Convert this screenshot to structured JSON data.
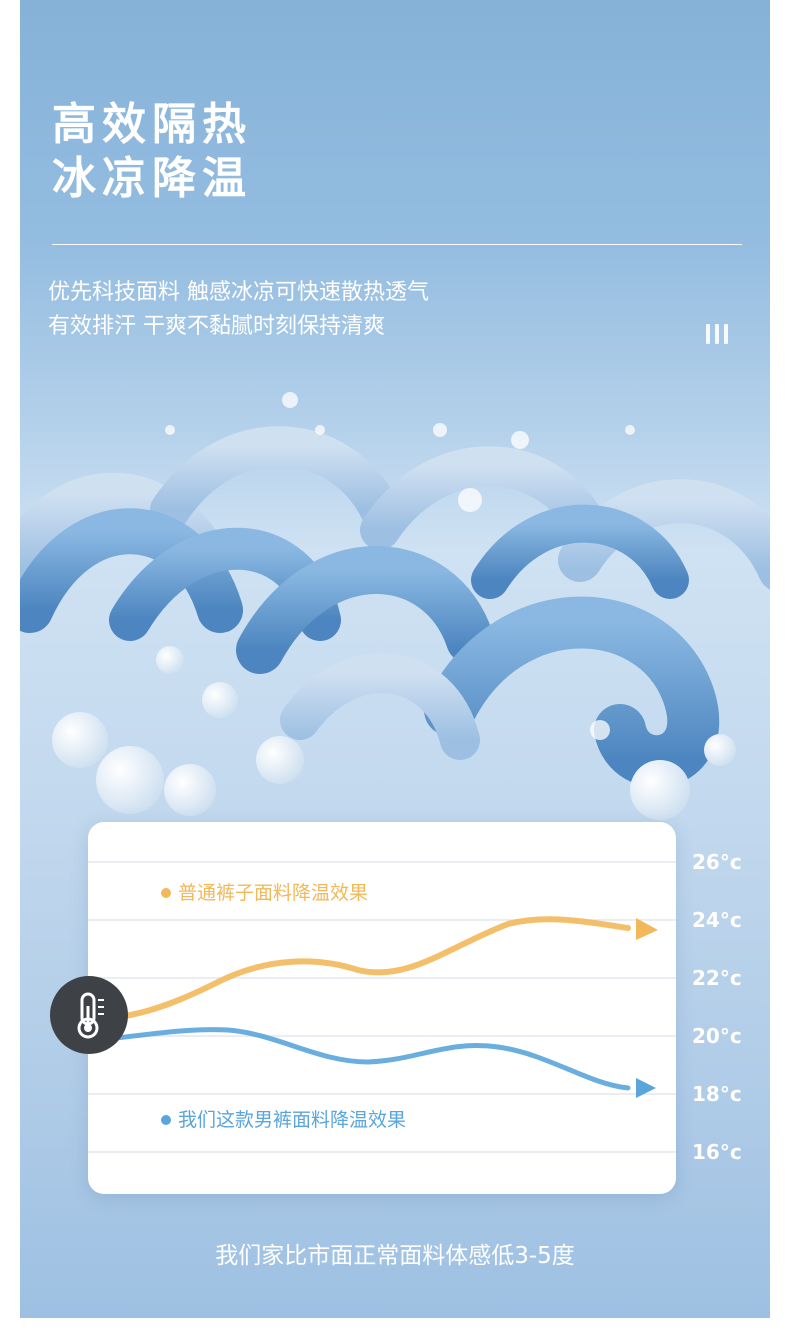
{
  "headline": {
    "line1": "高效隔热",
    "line2": "冰凉降温"
  },
  "subtitle": {
    "line1": "优先科技面料 触感冰凉可快速散热透气",
    "line2": "有效排汗 干爽不黏腻时刻保持清爽"
  },
  "chart_data": {
    "type": "line",
    "y_ticks": [
      "26°c",
      "24°c",
      "22°c",
      "20°c",
      "18°c",
      "16°c"
    ],
    "series": [
      {
        "name": "普通裤子面料降温效果",
        "color": "#f2b85a",
        "trend": "rising, ends with arrow near 24°c"
      },
      {
        "name": "我们这款男裤面料降温效果",
        "color": "#5aa5dc",
        "trend": "falling, ends with arrow near 18°c"
      }
    ]
  },
  "footer": {
    "text": "我们家比市面正常面料体感低3-5度"
  },
  "colors": {
    "panel_top": "#86b2d8",
    "orange": "#f2b85a",
    "blue": "#5aa5dc",
    "thermo_bg": "#3e4146"
  },
  "icons": {
    "thermometer": "thermometer-icon"
  }
}
